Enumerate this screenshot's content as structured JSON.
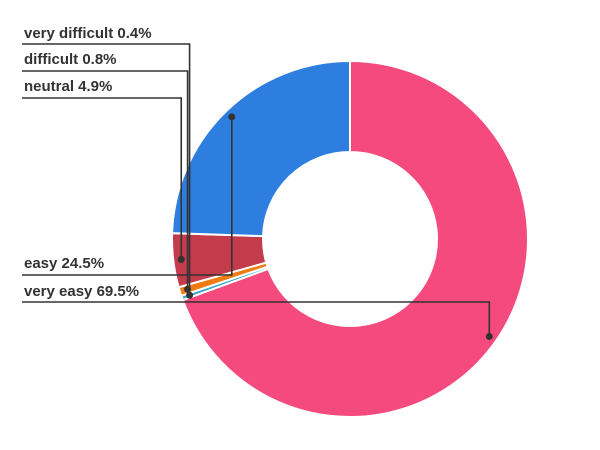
{
  "chart_data": {
    "type": "pie",
    "donut": true,
    "legend": "none",
    "slices": [
      {
        "label": "very easy",
        "value": 69.5,
        "display": "69.5%",
        "color": "#f44a7d"
      },
      {
        "label": "very difficult",
        "value": 0.4,
        "display": "0.4%",
        "color": "#39a8cc"
      },
      {
        "label": "difficult",
        "value": 0.8,
        "display": "0.8%",
        "color": "#ef7c12"
      },
      {
        "label": "neutral",
        "value": 4.9,
        "display": "4.9%",
        "color": "#c43b4c"
      },
      {
        "label": "easy",
        "value": 24.5,
        "display": "24.5%",
        "color": "#2e7ee0"
      }
    ]
  }
}
